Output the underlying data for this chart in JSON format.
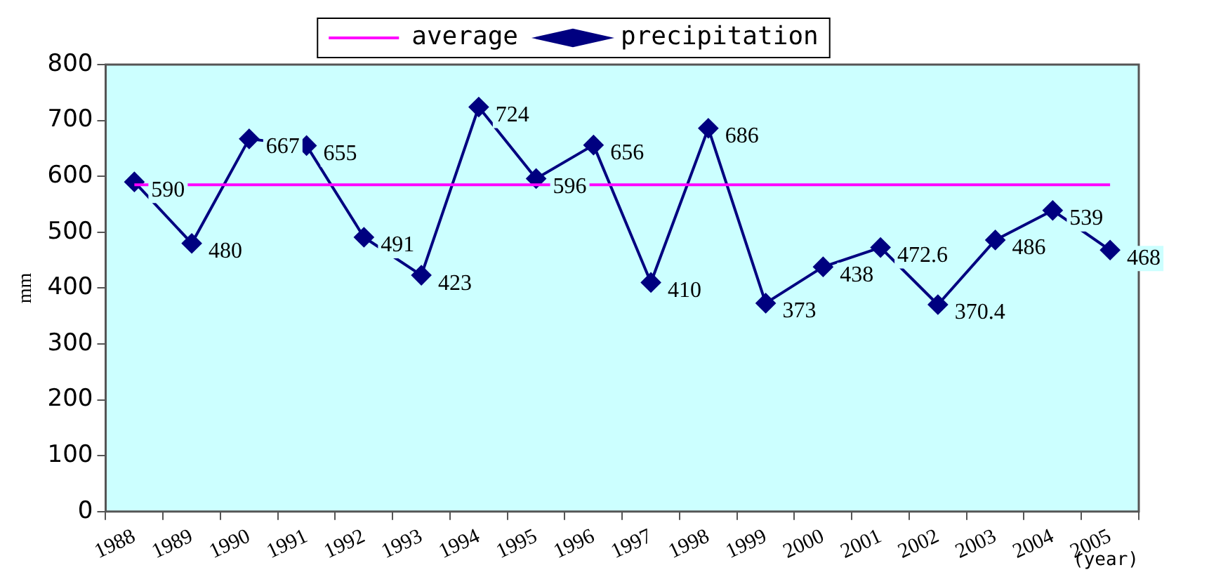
{
  "chart_data": {
    "type": "line",
    "xlabel": "(year)",
    "ylabel": "mm",
    "categories": [
      "1988",
      "1989",
      "1990",
      "1991",
      "1992",
      "1993",
      "1994",
      "1995",
      "1996",
      "1997",
      "1998",
      "1999",
      "2000",
      "2001",
      "2002",
      "2003",
      "2004",
      "2005"
    ],
    "series": [
      {
        "name": "precipitation",
        "color": "#000080",
        "marker": "diamond",
        "values": [
          590,
          480,
          667,
          655,
          491,
          423,
          724,
          596,
          656,
          410,
          686,
          373,
          438,
          472.6,
          370.4,
          486,
          539,
          468
        ],
        "value_labels": [
          "590",
          "480",
          "667",
          "655",
          "491",
          "423",
          "724",
          "596",
          "656",
          "410",
          "686",
          "373",
          "438",
          "472.6",
          "370.4",
          "486",
          "539",
          "468"
        ]
      },
      {
        "name": "average",
        "color": "#ff00ff",
        "marker": "none",
        "values": [
          585,
          585,
          585,
          585,
          585,
          585,
          585,
          585,
          585,
          585,
          585,
          585,
          585,
          585,
          585,
          585,
          585,
          585
        ]
      }
    ],
    "ylim": [
      0,
      800
    ],
    "yticks": [
      0,
      100,
      200,
      300,
      400,
      500,
      600,
      700,
      800
    ],
    "grid": false,
    "legend": "top"
  }
}
